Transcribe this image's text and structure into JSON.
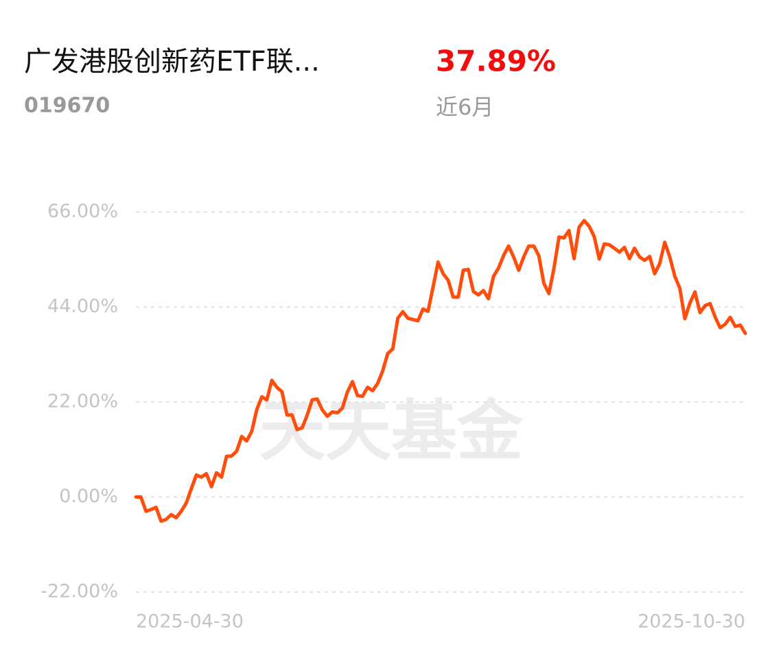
{
  "header": {
    "title": "广发港股创新药ETF联...",
    "code": "019670",
    "return": "37.89%",
    "period": "近6月"
  },
  "watermark": "天天基金",
  "chart_data": {
    "type": "line",
    "categories": [
      "2025-04-30",
      null,
      null,
      null,
      null,
      null,
      null,
      null,
      null,
      null,
      null,
      null,
      null,
      null,
      null,
      null,
      null,
      null,
      null,
      null,
      null,
      null,
      null,
      null,
      null,
      null,
      null,
      null,
      null,
      null,
      null,
      null,
      null,
      null,
      null,
      null,
      null,
      null,
      null,
      null,
      null,
      null,
      null,
      null,
      null,
      null,
      null,
      null,
      null,
      null,
      null,
      null,
      null,
      null,
      null,
      null,
      null,
      null,
      null,
      null,
      null,
      null,
      null,
      null,
      null,
      null,
      null,
      null,
      null,
      null,
      null,
      null,
      null,
      null,
      null,
      null,
      null,
      null,
      null,
      null,
      null,
      null,
      null,
      null,
      null,
      null,
      null,
      null,
      null,
      null,
      null,
      null,
      null,
      null,
      null,
      null,
      null,
      null,
      null,
      null,
      null,
      null,
      null,
      null,
      null,
      null,
      null,
      null,
      null,
      null,
      null,
      null,
      null,
      null,
      null,
      null,
      null,
      null,
      null,
      null,
      null,
      "2025-10-30"
    ],
    "series": [
      {
        "color": "#ff4d0d",
        "values": [
          0,
          0,
          -3.3,
          -2.9,
          -2.4,
          -5.6,
          -5.2,
          -4.1,
          -4.8,
          -3.3,
          -1.4,
          1.9,
          5.1,
          4.6,
          5.4,
          2.4,
          5.6,
          4.6,
          9.4,
          9.5,
          10.6,
          14.0,
          13.0,
          15.2,
          20.2,
          23.2,
          22.5,
          27.0,
          25.4,
          24.4,
          19.0,
          19.0,
          15.6,
          16.0,
          18.9,
          22.5,
          22.7,
          20.2,
          18.7,
          19.7,
          19.5,
          20.6,
          24.3,
          26.7,
          23.5,
          23.3,
          25.4,
          24.6,
          26.3,
          29.2,
          33.2,
          34.3,
          41.4,
          42.9,
          41.4,
          41.1,
          40.8,
          43.5,
          43.0,
          48.6,
          54.4,
          51.7,
          50.2,
          46.3,
          46.3,
          52.5,
          52.7,
          47.6,
          46.8,
          47.8,
          45.9,
          51.1,
          53.0,
          55.9,
          58.1,
          55.6,
          52.5,
          55.6,
          58.1,
          58.1,
          55.9,
          49.5,
          47.1,
          52.9,
          60.2,
          60.0,
          61.7,
          55.2,
          62.5,
          64.0,
          62.7,
          60.3,
          55.1,
          58.6,
          58.4,
          57.6,
          56.7,
          57.8,
          55.2,
          57.6,
          55.6,
          54.8,
          55.7,
          51.7,
          54.0,
          59.0,
          55.6,
          51.1,
          48.3,
          41.3,
          44.9,
          47.5,
          42.7,
          44.3,
          44.8,
          41.7,
          39.2,
          40.0,
          41.6,
          39.5,
          39.8,
          37.89
        ]
      }
    ],
    "ylim": [
      -22,
      66
    ],
    "yticks": [
      {
        "value": -22,
        "label": "-22.00%"
      },
      {
        "value": 0,
        "label": "0.00%"
      },
      {
        "value": 22,
        "label": "22.00%"
      },
      {
        "value": 44,
        "label": "44.00%"
      },
      {
        "value": 66,
        "label": "66.00%"
      }
    ],
    "grid": true
  }
}
